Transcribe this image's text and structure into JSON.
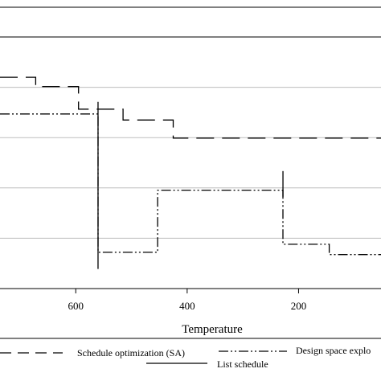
{
  "chart_data": {
    "type": "line",
    "title": "",
    "xlabel": "Temperature",
    "ylabel": "",
    "x_reversed": true,
    "xlim": [
      736,
      52
    ],
    "ylim": [
      0,
      10
    ],
    "x_ticks": [
      {
        "value": 600,
        "label": "600"
      },
      {
        "value": 400,
        "label": "400"
      },
      {
        "value": 200,
        "label": "200"
      }
    ],
    "y_gridlines": [
      2,
      4,
      6,
      8
    ],
    "grid": "horizontal",
    "legend_position": "bottom",
    "series": [
      {
        "name": "Schedule optimization (SA)",
        "style": "dashed",
        "step": true,
        "points": [
          [
            736,
            8.4
          ],
          [
            672,
            8.4
          ],
          [
            672,
            8.03
          ],
          [
            595,
            8.03
          ],
          [
            595,
            7.13
          ],
          [
            515,
            7.13
          ],
          [
            515,
            6.7
          ],
          [
            425,
            6.7
          ],
          [
            425,
            5.98
          ],
          [
            52,
            5.98
          ]
        ]
      },
      {
        "name": "Design space explo",
        "style": "dash-dot-dot",
        "step": true,
        "points": [
          [
            736,
            6.94
          ],
          [
            560,
            6.94
          ],
          [
            560,
            1.44
          ],
          [
            453,
            1.44
          ],
          [
            453,
            3.91
          ],
          [
            228,
            3.91
          ],
          [
            228,
            1.76
          ],
          [
            145,
            1.76
          ],
          [
            145,
            1.35
          ],
          [
            52,
            1.35
          ]
        ]
      },
      {
        "name": "List schedule",
        "style": "solid",
        "segments": [
          [
            [
              560,
              7.42
            ],
            [
              560,
              0.78
            ]
          ],
          [
            [
              228,
              4.67
            ],
            [
              228,
              3.65
            ]
          ]
        ]
      }
    ]
  }
}
